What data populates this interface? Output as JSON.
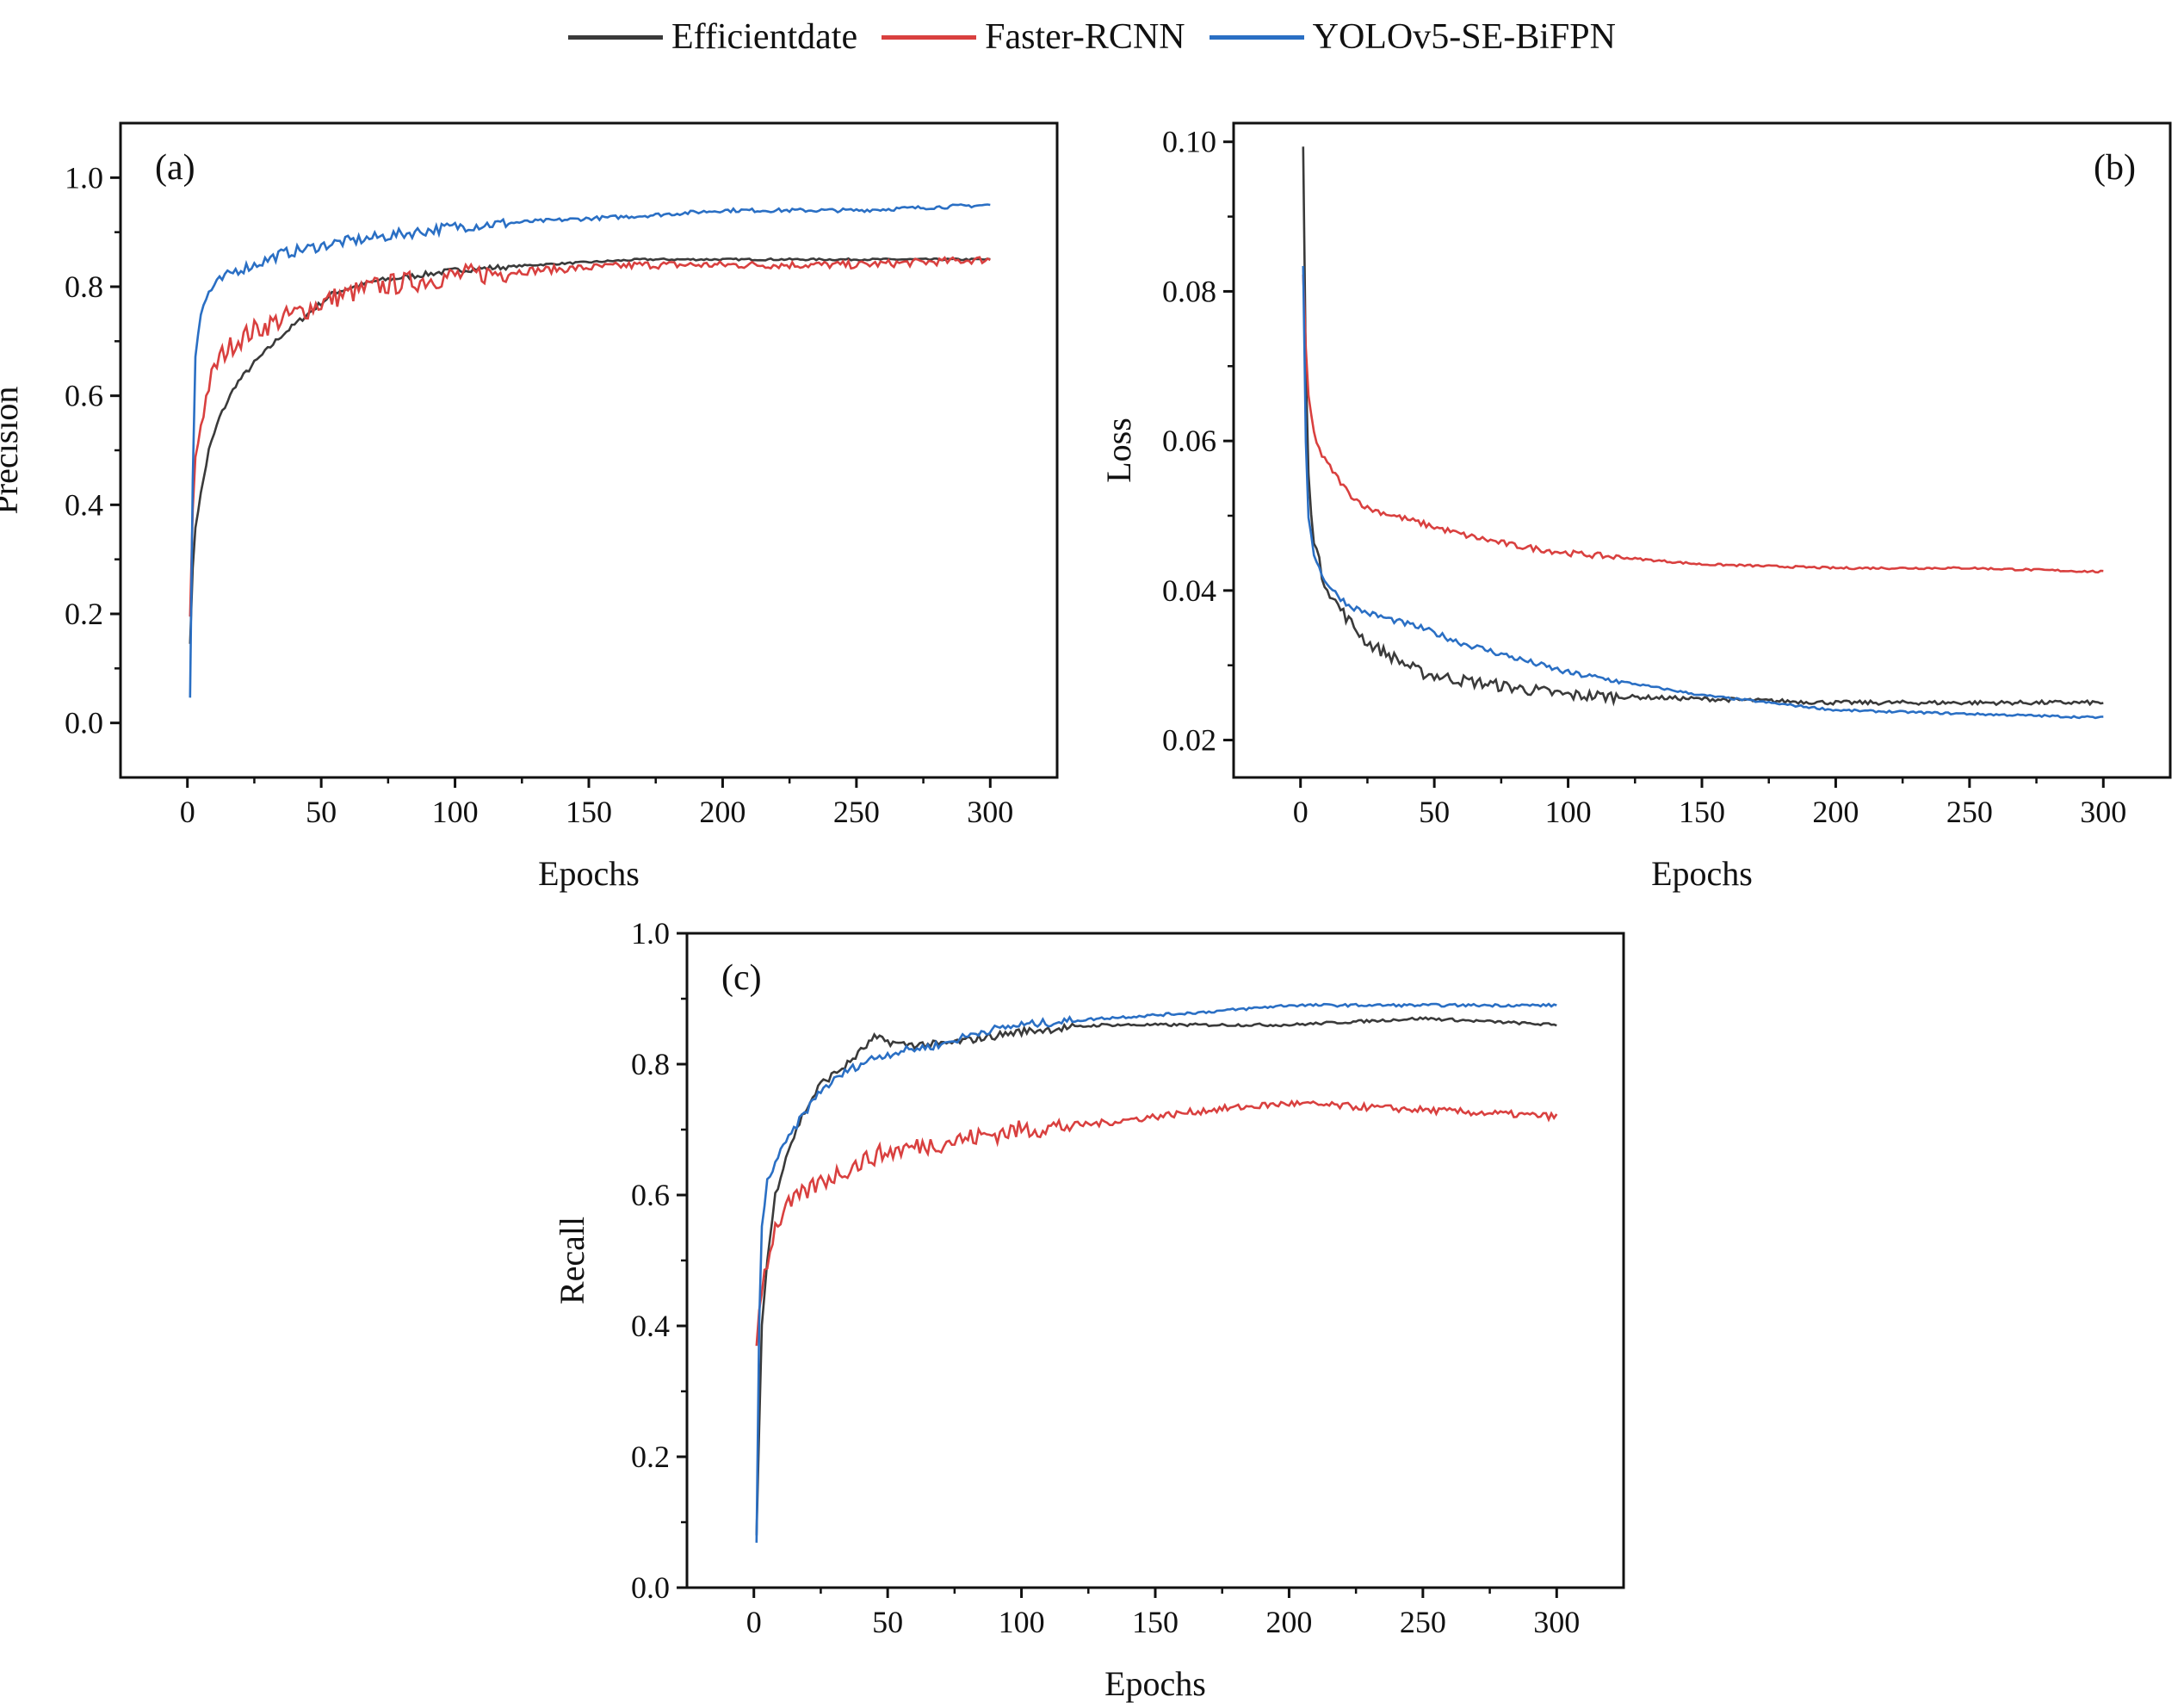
{
  "legend": [
    {
      "label": "Efficientdate",
      "color": "#3a3a3a"
    },
    {
      "label": "Faster-RCNN",
      "color": "#d9403f"
    },
    {
      "label": "YOLOv5-SE-BiFPN",
      "color": "#2a6fc4"
    }
  ],
  "chart_data": [
    {
      "type": "line",
      "panel_label": "(a)",
      "xlabel": "Epochs",
      "ylabel": "Precision",
      "xlim": [
        -25,
        325
      ],
      "ylim": [
        -0.1,
        1.1
      ],
      "xticks": [
        0,
        50,
        100,
        150,
        200,
        250,
        300
      ],
      "xtick_labels": [
        "0",
        "50",
        "100",
        "150",
        "200",
        "250",
        "300"
      ],
      "yticks": [
        0.0,
        0.2,
        0.4,
        0.6,
        0.8,
        1.0
      ],
      "ytick_labels": [
        "0.0",
        "0.2",
        "0.4",
        "0.6",
        "0.8",
        "1.0"
      ],
      "series": [
        {
          "name": "Efficientdate",
          "color": "#3a3a3a",
          "noise": 0.005,
          "x": [
            1,
            2,
            3,
            5,
            8,
            12,
            18,
            25,
            35,
            45,
            55,
            70,
            85,
            100,
            130,
            170,
            200,
            250,
            300
          ],
          "y": [
            0.15,
            0.28,
            0.36,
            0.42,
            0.5,
            0.56,
            0.62,
            0.66,
            0.71,
            0.75,
            0.79,
            0.81,
            0.82,
            0.83,
            0.84,
            0.85,
            0.85,
            0.85,
            0.85
          ]
        },
        {
          "name": "Faster-RCNN",
          "color": "#d9403f",
          "noise": 0.02,
          "x": [
            1,
            2,
            3,
            5,
            8,
            12,
            18,
            25,
            35,
            45,
            55,
            70,
            85,
            100,
            130,
            170,
            200,
            250,
            300
          ],
          "y": [
            0.18,
            0.4,
            0.48,
            0.55,
            0.62,
            0.67,
            0.7,
            0.72,
            0.74,
            0.76,
            0.78,
            0.8,
            0.81,
            0.82,
            0.83,
            0.84,
            0.84,
            0.84,
            0.85
          ]
        },
        {
          "name": "YOLOv5-SE-BiFPN",
          "color": "#2a6fc4",
          "noise": 0.01,
          "x": [
            1,
            2,
            3,
            5,
            8,
            12,
            18,
            25,
            35,
            45,
            55,
            70,
            85,
            100,
            130,
            170,
            200,
            250,
            300
          ],
          "y": [
            0.05,
            0.45,
            0.68,
            0.75,
            0.79,
            0.81,
            0.83,
            0.84,
            0.86,
            0.87,
            0.88,
            0.89,
            0.9,
            0.91,
            0.92,
            0.93,
            0.94,
            0.94,
            0.95
          ]
        }
      ]
    },
    {
      "type": "line",
      "panel_label": "(b)",
      "xlabel": "Epochs",
      "ylabel": "Loss",
      "xlim": [
        -25,
        325
      ],
      "ylim": [
        0.015,
        0.1025
      ],
      "xticks": [
        0,
        50,
        100,
        150,
        200,
        250,
        300
      ],
      "xtick_labels": [
        "0",
        "50",
        "100",
        "150",
        "200",
        "250",
        "300"
      ],
      "yticks": [
        0.02,
        0.04,
        0.06,
        0.08,
        0.1
      ],
      "ytick_labels": [
        "0.02",
        "0.04",
        "0.06",
        "0.08",
        "0.10"
      ],
      "series": [
        {
          "name": "Efficientdate",
          "color": "#3a3a3a",
          "noise": 0.0008,
          "x": [
            1,
            2,
            3,
            5,
            8,
            12,
            18,
            25,
            35,
            45,
            60,
            80,
            100,
            150,
            200,
            250,
            300
          ],
          "y": [
            0.099,
            0.07,
            0.055,
            0.047,
            0.042,
            0.039,
            0.036,
            0.033,
            0.031,
            0.029,
            0.028,
            0.027,
            0.026,
            0.0255,
            0.025,
            0.025,
            0.025
          ]
        },
        {
          "name": "Faster-RCNN",
          "color": "#d9403f",
          "noise": 0.0004,
          "x": [
            1,
            2,
            3,
            5,
            8,
            12,
            18,
            25,
            35,
            45,
            60,
            80,
            100,
            150,
            200,
            250,
            300
          ],
          "y": [
            0.082,
            0.072,
            0.066,
            0.061,
            0.058,
            0.056,
            0.053,
            0.051,
            0.05,
            0.049,
            0.0475,
            0.046,
            0.045,
            0.0435,
            0.043,
            0.043,
            0.0425
          ]
        },
        {
          "name": "YOLOv5-SE-BiFPN",
          "color": "#2a6fc4",
          "noise": 0.0004,
          "x": [
            1,
            2,
            3,
            5,
            8,
            12,
            18,
            25,
            35,
            45,
            60,
            80,
            100,
            150,
            200,
            250,
            300
          ],
          "y": [
            0.083,
            0.06,
            0.05,
            0.045,
            0.042,
            0.04,
            0.038,
            0.037,
            0.036,
            0.035,
            0.033,
            0.031,
            0.029,
            0.026,
            0.024,
            0.0235,
            0.023
          ]
        }
      ]
    },
    {
      "type": "line",
      "panel_label": "(c)",
      "xlabel": "Epochs",
      "ylabel": "Recall",
      "xlim": [
        -25,
        325
      ],
      "ylim": [
        0.0,
        1.0
      ],
      "xticks": [
        0,
        50,
        100,
        150,
        200,
        250,
        300
      ],
      "xtick_labels": [
        "0",
        "50",
        "100",
        "150",
        "200",
        "250",
        "300"
      ],
      "yticks": [
        0.0,
        0.2,
        0.4,
        0.6,
        0.8,
        1.0
      ],
      "ytick_labels": [
        "0.0",
        "0.2",
        "0.4",
        "0.6",
        "0.8",
        "1.0"
      ],
      "series": [
        {
          "name": "Efficientdate",
          "color": "#3a3a3a",
          "noise": 0.006,
          "x": [
            1,
            2,
            3,
            5,
            8,
            12,
            18,
            25,
            35,
            45,
            55,
            70,
            85,
            100,
            130,
            170,
            200,
            250,
            300
          ],
          "y": [
            0.08,
            0.25,
            0.4,
            0.5,
            0.6,
            0.66,
            0.72,
            0.77,
            0.8,
            0.84,
            0.83,
            0.83,
            0.84,
            0.85,
            0.86,
            0.86,
            0.86,
            0.87,
            0.86
          ]
        },
        {
          "name": "Faster-RCNN",
          "color": "#d9403f",
          "noise": 0.015,
          "x": [
            1,
            2,
            3,
            5,
            8,
            12,
            18,
            25,
            35,
            45,
            55,
            70,
            85,
            100,
            130,
            170,
            200,
            250,
            300
          ],
          "y": [
            0.38,
            0.42,
            0.46,
            0.5,
            0.55,
            0.58,
            0.6,
            0.62,
            0.64,
            0.66,
            0.67,
            0.68,
            0.69,
            0.7,
            0.71,
            0.73,
            0.74,
            0.73,
            0.72
          ]
        },
        {
          "name": "YOLOv5-SE-BiFPN",
          "color": "#2a6fc4",
          "noise": 0.006,
          "x": [
            1,
            2,
            3,
            5,
            8,
            12,
            18,
            25,
            35,
            45,
            55,
            70,
            85,
            100,
            130,
            170,
            200,
            250,
            300
          ],
          "y": [
            0.07,
            0.4,
            0.55,
            0.62,
            0.65,
            0.68,
            0.72,
            0.76,
            0.79,
            0.81,
            0.82,
            0.83,
            0.85,
            0.86,
            0.87,
            0.88,
            0.89,
            0.89,
            0.89
          ]
        }
      ]
    }
  ]
}
